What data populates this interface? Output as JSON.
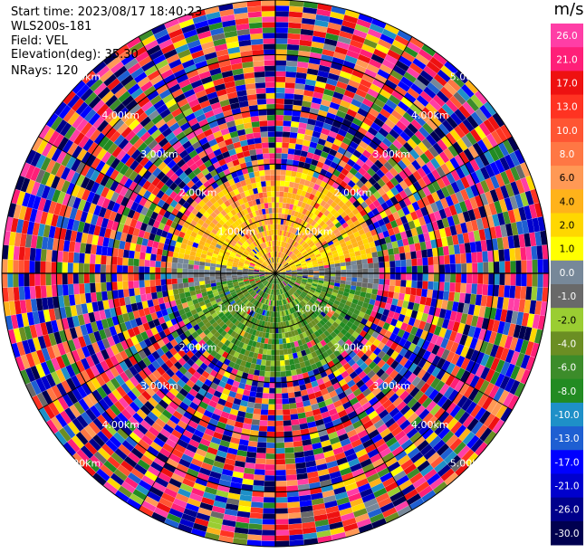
{
  "info": {
    "start_time_label": "Start time:",
    "start_time": "2023/08/17 18:40:23",
    "site": "WLS200s-181",
    "field_label": "Field:",
    "field": "VEL",
    "elevation_label": "Elevation(deg):",
    "elevation": "35.30",
    "nrays_label": "NRays:",
    "nrays": "120"
  },
  "chart_data": {
    "type": "heatmap",
    "subtype": "polar-ppi",
    "range_unit": "km",
    "range_rings": [
      {
        "value": 1.0,
        "label": "1.00km"
      },
      {
        "value": 2.0,
        "label": "2.00km"
      },
      {
        "value": 3.0,
        "label": "3.00km"
      },
      {
        "value": 4.0,
        "label": "4.00km"
      },
      {
        "value": 5.0,
        "label": "5.00km"
      }
    ],
    "max_range_km": 5.0,
    "nrays": 120,
    "noise_beyond_km": 1.9,
    "colorbar": {
      "title": "m/s",
      "ticks": [
        "26.0",
        "21.0",
        "17.0",
        "13.0",
        "10.0",
        "8.0",
        "6.0",
        "4.0",
        "2.0",
        "1.0",
        "0.0",
        "-1.0",
        "-2.0",
        "-4.0",
        "-6.0",
        "-8.0",
        "-10.0",
        "-13.0",
        "-17.0",
        "-21.0",
        "-26.0",
        "-30.0"
      ],
      "bins": [
        {
          "min": 26,
          "max": 30,
          "color": "#ff3ea6"
        },
        {
          "min": 21,
          "max": 26,
          "color": "#ff1f78"
        },
        {
          "min": 17,
          "max": 21,
          "color": "#ee1111"
        },
        {
          "min": 13,
          "max": 17,
          "color": "#ff3322"
        },
        {
          "min": 10,
          "max": 13,
          "color": "#ff5533"
        },
        {
          "min": 8,
          "max": 10,
          "color": "#ff7744"
        },
        {
          "min": 6,
          "max": 8,
          "color": "#ff9955"
        },
        {
          "min": 4,
          "max": 6,
          "color": "#ffb21a"
        },
        {
          "min": 2,
          "max": 4,
          "color": "#ffd700"
        },
        {
          "min": 1,
          "max": 2,
          "color": "#ffff00"
        },
        {
          "min": 0,
          "max": 1,
          "color": "#778899"
        },
        {
          "min": -1,
          "max": 0,
          "color": "#696969"
        },
        {
          "min": -2,
          "max": -1,
          "color": "#9acd32"
        },
        {
          "min": -4,
          "max": -2,
          "color": "#6b8e23"
        },
        {
          "min": -6,
          "max": -4,
          "color": "#3c8c2a"
        },
        {
          "min": -8,
          "max": -6,
          "color": "#228b22"
        },
        {
          "min": -10,
          "max": -8,
          "color": "#1e90c8"
        },
        {
          "min": -13,
          "max": -10,
          "color": "#1e5fd2"
        },
        {
          "min": -17,
          "max": -13,
          "color": "#0000ff"
        },
        {
          "min": -21,
          "max": -17,
          "color": "#0000cd"
        },
        {
          "min": -26,
          "max": -21,
          "color": "#00008b"
        },
        {
          "min": -30,
          "max": -26,
          "color": "#000050"
        }
      ]
    },
    "signal_pattern": [
      {
        "sector": "north",
        "velocity_ms": [
          1,
          8
        ],
        "range_km": [
          0,
          1.9
        ]
      },
      {
        "sector": "south",
        "velocity_ms": [
          -8,
          -1
        ],
        "range_km": [
          0,
          1.9
        ]
      }
    ]
  }
}
